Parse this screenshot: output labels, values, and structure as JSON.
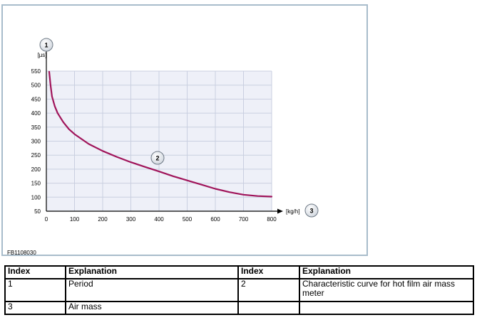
{
  "chart_data": {
    "type": "line",
    "title": "",
    "xlabel": "[kg/h]",
    "ylabel": "[µs]",
    "xlim": [
      0,
      800
    ],
    "ylim": [
      50,
      550
    ],
    "x_ticks": [
      0,
      100,
      200,
      300,
      400,
      500,
      600,
      700,
      800
    ],
    "y_ticks": [
      50,
      100,
      150,
      200,
      250,
      300,
      350,
      400,
      450,
      500,
      550
    ],
    "grid": true,
    "series": [
      {
        "x": [
          10,
          15,
          20,
          30,
          40,
          60,
          80,
          100,
          150,
          200,
          250,
          300,
          350,
          400,
          450,
          500,
          550,
          600,
          650,
          700,
          750,
          800
        ],
        "y": [
          548,
          500,
          460,
          425,
          400,
          368,
          343,
          325,
          290,
          265,
          244,
          225,
          208,
          192,
          175,
          160,
          145,
          130,
          118,
          109,
          104,
          102
        ]
      }
    ],
    "callouts": [
      {
        "number": "1",
        "target": "y-axis"
      },
      {
        "number": "2",
        "target": "curve"
      },
      {
        "number": "3",
        "target": "x-axis"
      }
    ],
    "figure_id": "FB1108030"
  },
  "colors": {
    "curve": "#a0145a",
    "plot_background": "#eef0f8",
    "grid": "#c9cfe0",
    "frame": "#a8bccb",
    "callout_fill": "#e6e9ee",
    "callout_stroke": "#6f7a86"
  },
  "legend_table": {
    "headers": [
      "Index",
      "Explanation",
      "Index",
      "Explanation"
    ],
    "rows": [
      [
        "1",
        "Period",
        "2",
        "Characteristic curve for hot film air mass meter"
      ],
      [
        "3",
        "Air mass",
        "",
        ""
      ]
    ]
  }
}
